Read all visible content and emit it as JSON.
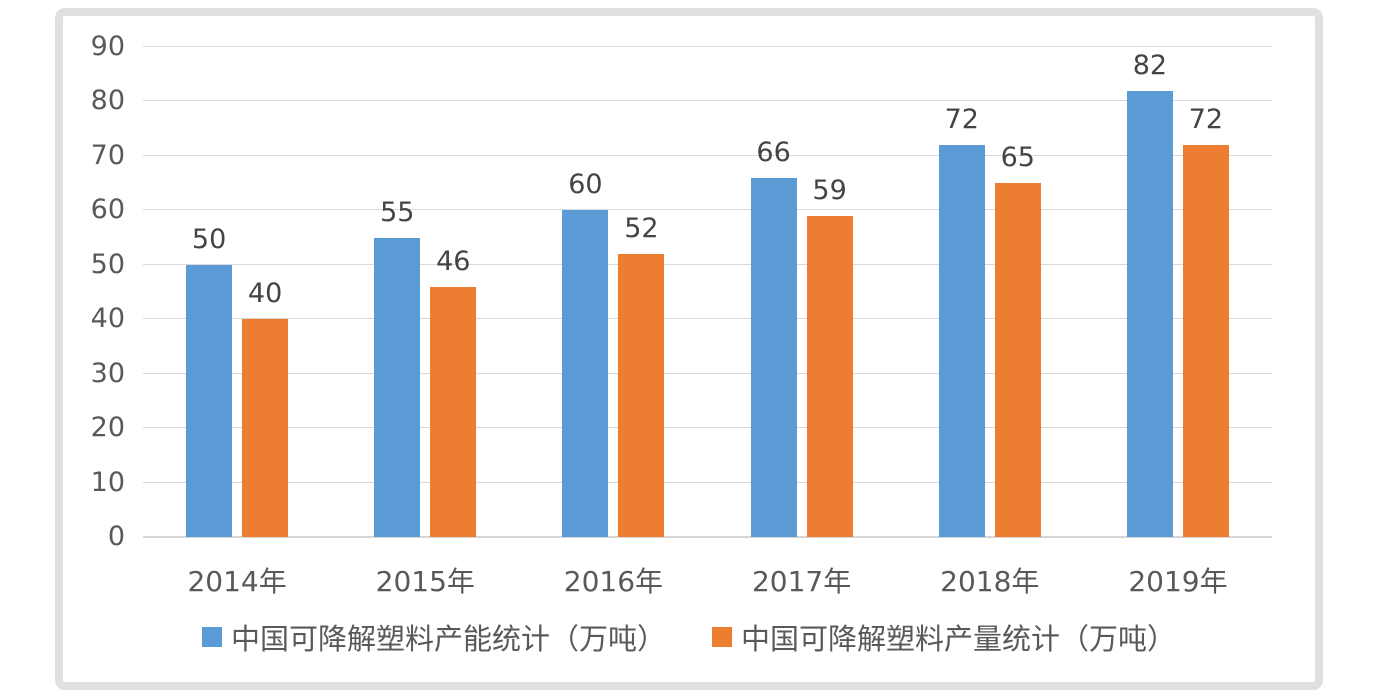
{
  "chart_data": {
    "type": "bar",
    "title": "",
    "xlabel": "",
    "ylabel": "",
    "categories": [
      "2014年",
      "2015年",
      "2016年",
      "2017年",
      "2018年",
      "2019年"
    ],
    "series": [
      {
        "name": "中国可降解塑料产能统计（万吨）",
        "color": "#5B9BD5",
        "values": [
          50,
          55,
          60,
          66,
          72,
          82
        ]
      },
      {
        "name": "中国可降解塑料产量统计（万吨）",
        "color": "#ED7D31",
        "values": [
          40,
          46,
          52,
          59,
          65,
          72
        ]
      }
    ],
    "ylim": [
      0,
      90
    ],
    "yticks": [
      0,
      10,
      20,
      30,
      40,
      50,
      60,
      70,
      80,
      90
    ],
    "grid": true,
    "data_labels": true,
    "legend_position": "bottom"
  },
  "colors": {
    "series1": "#5B9BD5",
    "series2": "#ED7D31",
    "gridline": "#D9D9D9",
    "axis_line": "#D6D6D6",
    "tick_text": "#595959",
    "value_label_text": "#444444",
    "legend_text": "#595959",
    "frame_border": "#E0E0E0",
    "background": "#FFFFFF"
  }
}
